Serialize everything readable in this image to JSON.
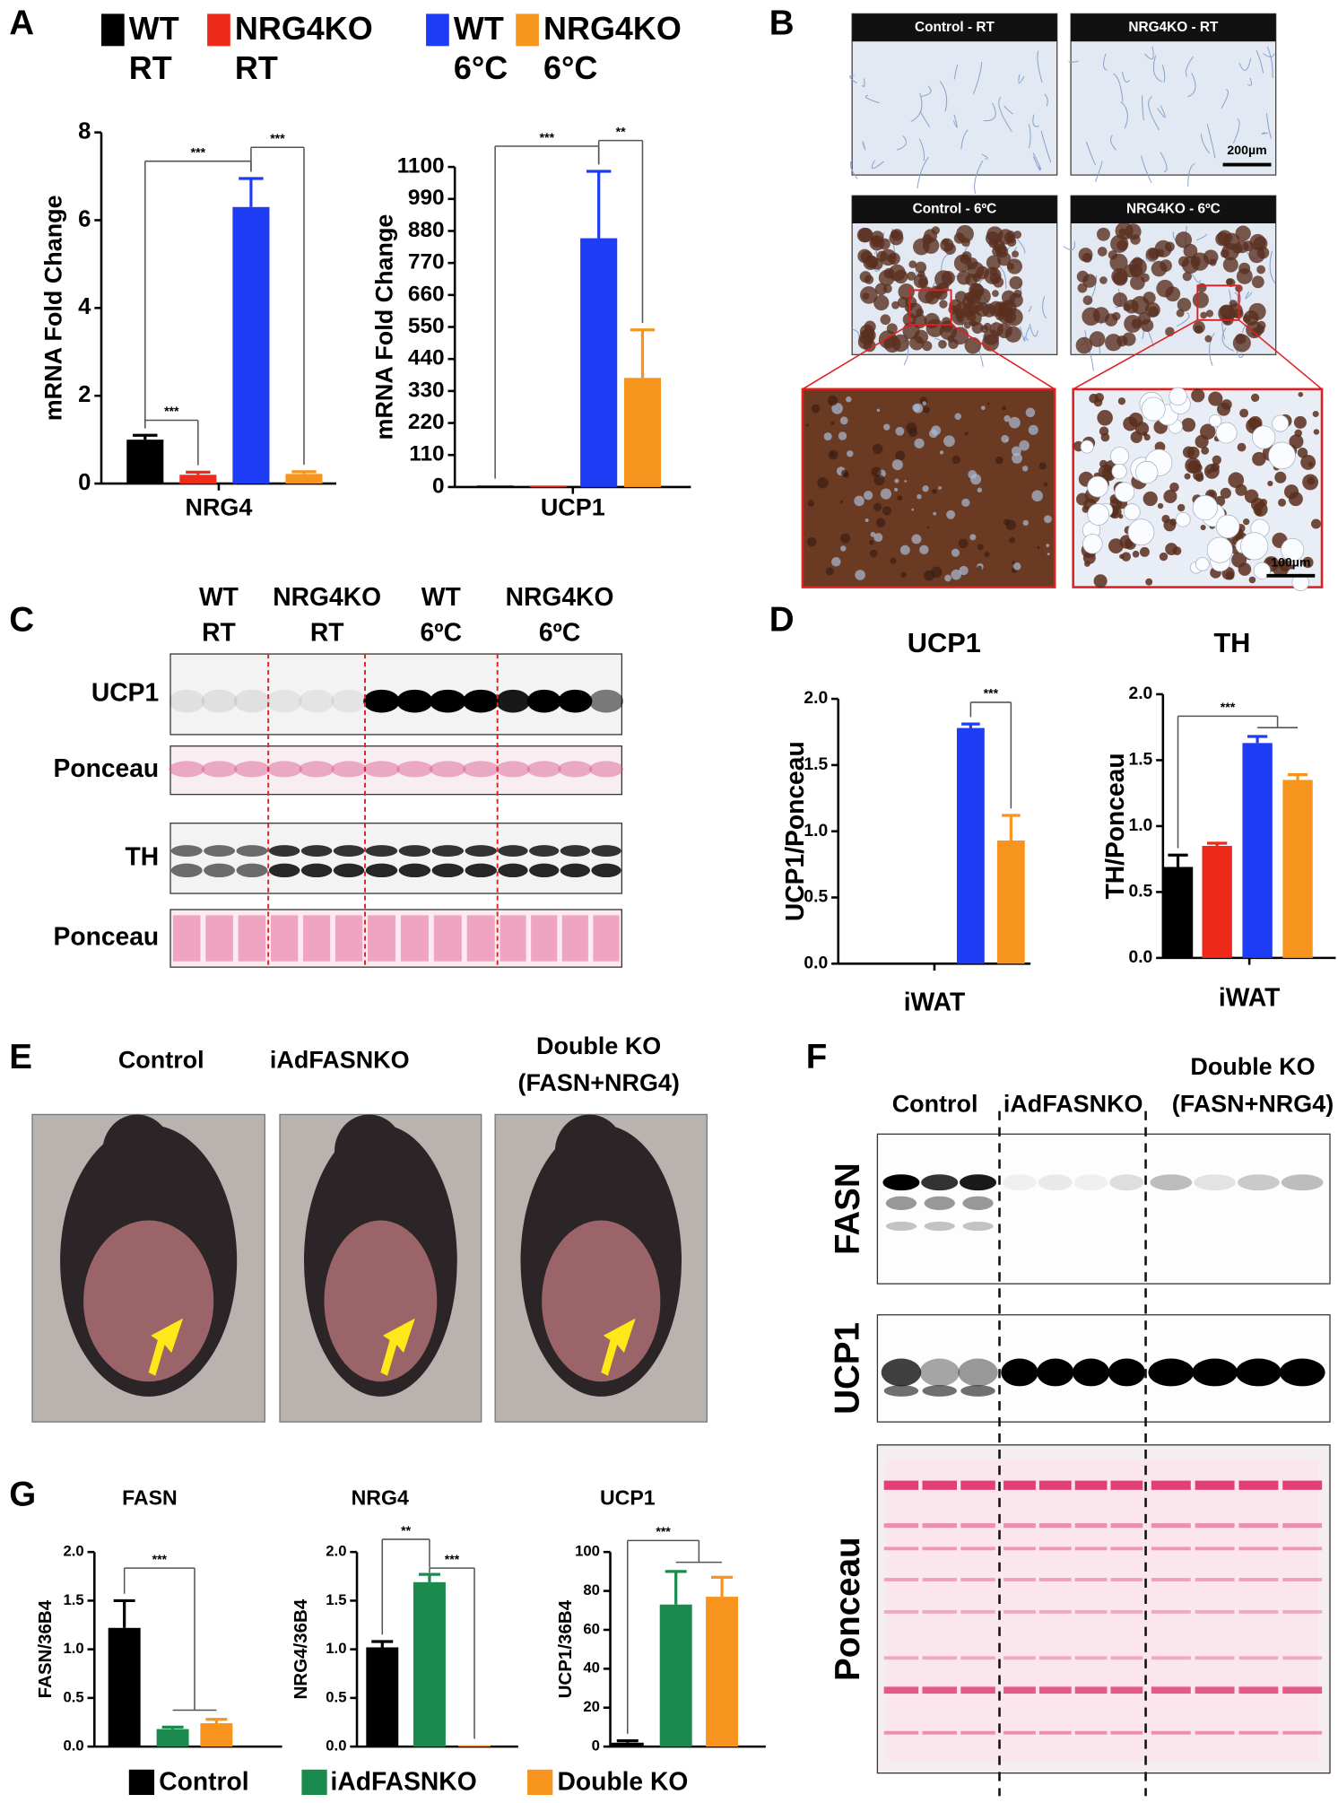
{
  "panel_labels": [
    "A",
    "B",
    "C",
    "D",
    "E",
    "F",
    "G"
  ],
  "legend_a": [
    {
      "name": "WT",
      "condition": "RT",
      "color": "#000000"
    },
    {
      "name": "NRG4KO",
      "condition": "RT",
      "color": "#ee2a1b"
    },
    {
      "name": "WT",
      "condition": "6°C",
      "color": "#1f3cf5"
    },
    {
      "name": "NRG4KO",
      "condition": "6°C",
      "color": "#f7941d"
    }
  ],
  "histology": {
    "panels": [
      "Control - RT",
      "NRG4KO - RT",
      "Control - 6ºC",
      "NRG4KO - 6ºC"
    ],
    "scale_bars": [
      "200µm",
      "100µm"
    ]
  },
  "blot_c": {
    "lanes": [
      [
        "WT",
        "RT"
      ],
      [
        "NRG4KO",
        "RT"
      ],
      [
        "WT",
        "6ºC"
      ],
      [
        "NRG4KO",
        "6ºC"
      ]
    ],
    "rows": [
      "UCP1",
      "Ponceau",
      "TH",
      "Ponceau"
    ]
  },
  "photos_e": {
    "groups": [
      [
        "Control"
      ],
      [
        "iAdFASNKO"
      ],
      [
        "Double KO",
        "(FASN+NRG4)"
      ]
    ]
  },
  "blot_f": {
    "groups": [
      [
        "Control"
      ],
      [
        "iAdFASNKO"
      ],
      [
        "Double KO",
        "(FASN+NRG4)"
      ]
    ],
    "rows": [
      "FASN",
      "UCP1",
      "Ponceau"
    ]
  },
  "legend_g": [
    {
      "name": "Control",
      "color": "#000000"
    },
    {
      "name": "iAdFASNKO",
      "color": "#1a8a4e"
    },
    {
      "name": "Double KO",
      "color": "#f7941d"
    }
  ],
  "chart_data": [
    {
      "type": "bar",
      "xlabel": "NRG4",
      "ylabel": "mRNA Fold Change",
      "categories": [
        null,
        null,
        null,
        null
      ],
      "values": [
        1.0,
        0.2,
        6.3,
        0.22
      ],
      "errors": [
        0.1,
        0.06,
        0.65,
        0.05
      ],
      "colors": [
        "#000000",
        "#ee2a1b",
        "#1f3cf5",
        "#f7941d"
      ],
      "ylim": [
        0,
        8
      ],
      "yticks": [
        0,
        2,
        4,
        6,
        8
      ],
      "annotations": [
        "***",
        "***",
        "***"
      ]
    },
    {
      "type": "bar",
      "xlabel": "UCP1",
      "ylabel": "mRNA Fold Change",
      "categories": [
        null,
        null,
        null,
        null
      ],
      "values": [
        5,
        5,
        855,
        375
      ],
      "errors": [
        0,
        0,
        230,
        165
      ],
      "colors": [
        "#000000",
        "#ee2a1b",
        "#1f3cf5",
        "#f7941d"
      ],
      "ylim": [
        0,
        1100
      ],
      "yticks": [
        0,
        110,
        220,
        330,
        440,
        550,
        660,
        770,
        880,
        990,
        1100
      ],
      "annotations": [
        "***",
        "**"
      ]
    },
    {
      "type": "bar",
      "title": "UCP1",
      "xlabel": "iWAT",
      "ylabel": "UCP1/Ponceau",
      "categories": [
        null,
        null,
        null,
        null
      ],
      "values": [
        0,
        0,
        1.78,
        0.93
      ],
      "errors": [
        0,
        0,
        0.03,
        0.19
      ],
      "colors": [
        "#000000",
        "#ee2a1b",
        "#1f3cf5",
        "#f7941d"
      ],
      "ylim": [
        0,
        2
      ],
      "yticks": [
        {
          "value": 0,
          "label": "0.0"
        },
        0.5,
        {
          "value": 1,
          "label": "1.0"
        },
        1.5,
        {
          "value": 2,
          "label": "2.0"
        }
      ],
      "annotations": [
        "***"
      ]
    },
    {
      "type": "bar",
      "title": "TH",
      "xlabel": "iWAT",
      "ylabel": "TH/Ponceau",
      "categories": [
        null,
        null,
        null,
        null
      ],
      "values": [
        0.69,
        0.85,
        1.63,
        1.35
      ],
      "errors": [
        0.09,
        0.02,
        0.05,
        0.04
      ],
      "colors": [
        "#000000",
        "#ee2a1b",
        "#1f3cf5",
        "#f7941d"
      ],
      "ylim": [
        0,
        2
      ],
      "yticks": [
        {
          "value": 0,
          "label": "0.0"
        },
        0.5,
        {
          "value": 1,
          "label": "1.0"
        },
        1.5,
        {
          "value": 2,
          "label": "2.0"
        }
      ],
      "annotations": [
        "***"
      ]
    },
    {
      "type": "bar",
      "title": "FASN",
      "ylabel": "FASN/36B4",
      "categories": [
        null,
        null,
        null
      ],
      "values": [
        1.22,
        0.18,
        0.24
      ],
      "errors": [
        0.28,
        0.02,
        0.04
      ],
      "colors": [
        "#000000",
        "#1a8a4e",
        "#f7941d"
      ],
      "ylim": [
        0,
        2
      ],
      "yticks": [
        {
          "value": 0,
          "label": "0.0"
        },
        0.5,
        {
          "value": 1,
          "label": "1.0"
        },
        1.5,
        {
          "value": 2,
          "label": "2.0"
        }
      ],
      "annotations": [
        "***"
      ]
    },
    {
      "type": "bar",
      "title": "NRG4",
      "ylabel": "NRG4/36B4",
      "categories": [
        null,
        null,
        null
      ],
      "values": [
        1.02,
        1.69,
        0.01
      ],
      "errors": [
        0.06,
        0.08,
        0
      ],
      "colors": [
        "#000000",
        "#1a8a4e",
        "#f7941d"
      ],
      "ylim": [
        0,
        2
      ],
      "yticks": [
        {
          "value": 0,
          "label": "0.0"
        },
        0.5,
        {
          "value": 1,
          "label": "1.0"
        },
        1.5,
        {
          "value": 2,
          "label": "2.0"
        }
      ],
      "annotations": [
        "**",
        "***"
      ]
    },
    {
      "type": "bar",
      "title": "UCP1",
      "ylabel": "UCP1/36B4",
      "categories": [
        null,
        null,
        null
      ],
      "values": [
        2,
        73,
        77
      ],
      "errors": [
        1,
        17,
        10
      ],
      "colors": [
        "#000000",
        "#1a8a4e",
        "#f7941d"
      ],
      "ylim": [
        0,
        100
      ],
      "yticks": [
        0,
        20,
        40,
        60,
        80,
        100
      ],
      "annotations": [
        "***"
      ]
    }
  ]
}
